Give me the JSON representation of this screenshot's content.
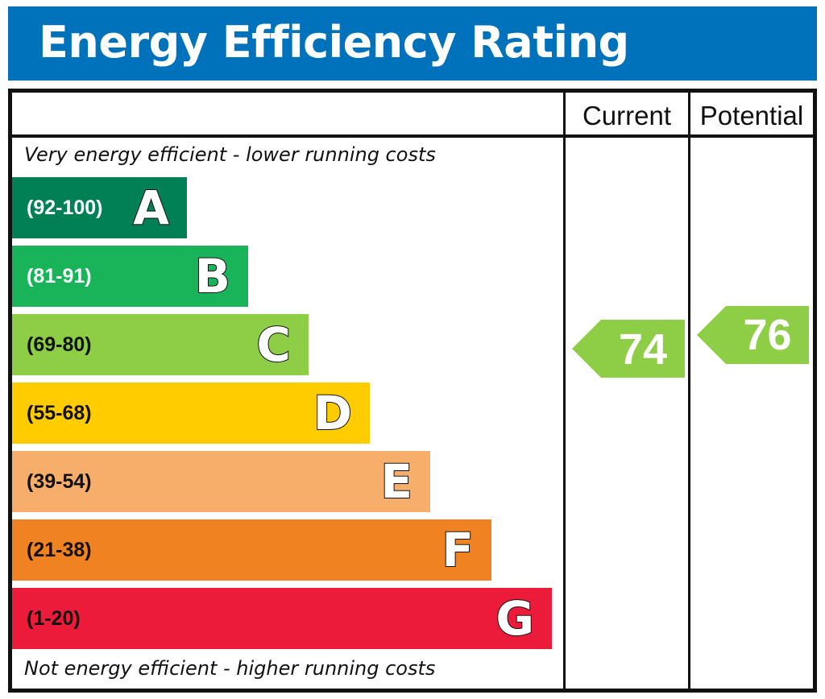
{
  "title": "Energy Efficiency Rating",
  "columns": {
    "current": "Current",
    "potential": "Potential"
  },
  "top_caption": "Very energy efficient - lower running costs",
  "bottom_caption": "Not energy efficient - higher running costs",
  "bands": [
    {
      "letter": "A",
      "range": "(92-100)",
      "color": "#008054"
    },
    {
      "letter": "B",
      "range": "(81-91)",
      "color": "#19b459"
    },
    {
      "letter": "C",
      "range": "(69-80)",
      "color": "#8dce46"
    },
    {
      "letter": "D",
      "range": "(55-68)",
      "color": "#ffcc00"
    },
    {
      "letter": "E",
      "range": "(39-54)",
      "color": "#f7ae6a"
    },
    {
      "letter": "F",
      "range": "(21-38)",
      "color": "#f08222"
    },
    {
      "letter": "G",
      "range": "(1-20)",
      "color": "#ed1b3a"
    }
  ],
  "current_rating": {
    "value": "74",
    "band": "C",
    "color": "#8dce46"
  },
  "potential_rating": {
    "value": "76",
    "band": "C",
    "color": "#8dce46"
  },
  "colors": {
    "header": "#0072bb",
    "border": "#111111"
  }
}
